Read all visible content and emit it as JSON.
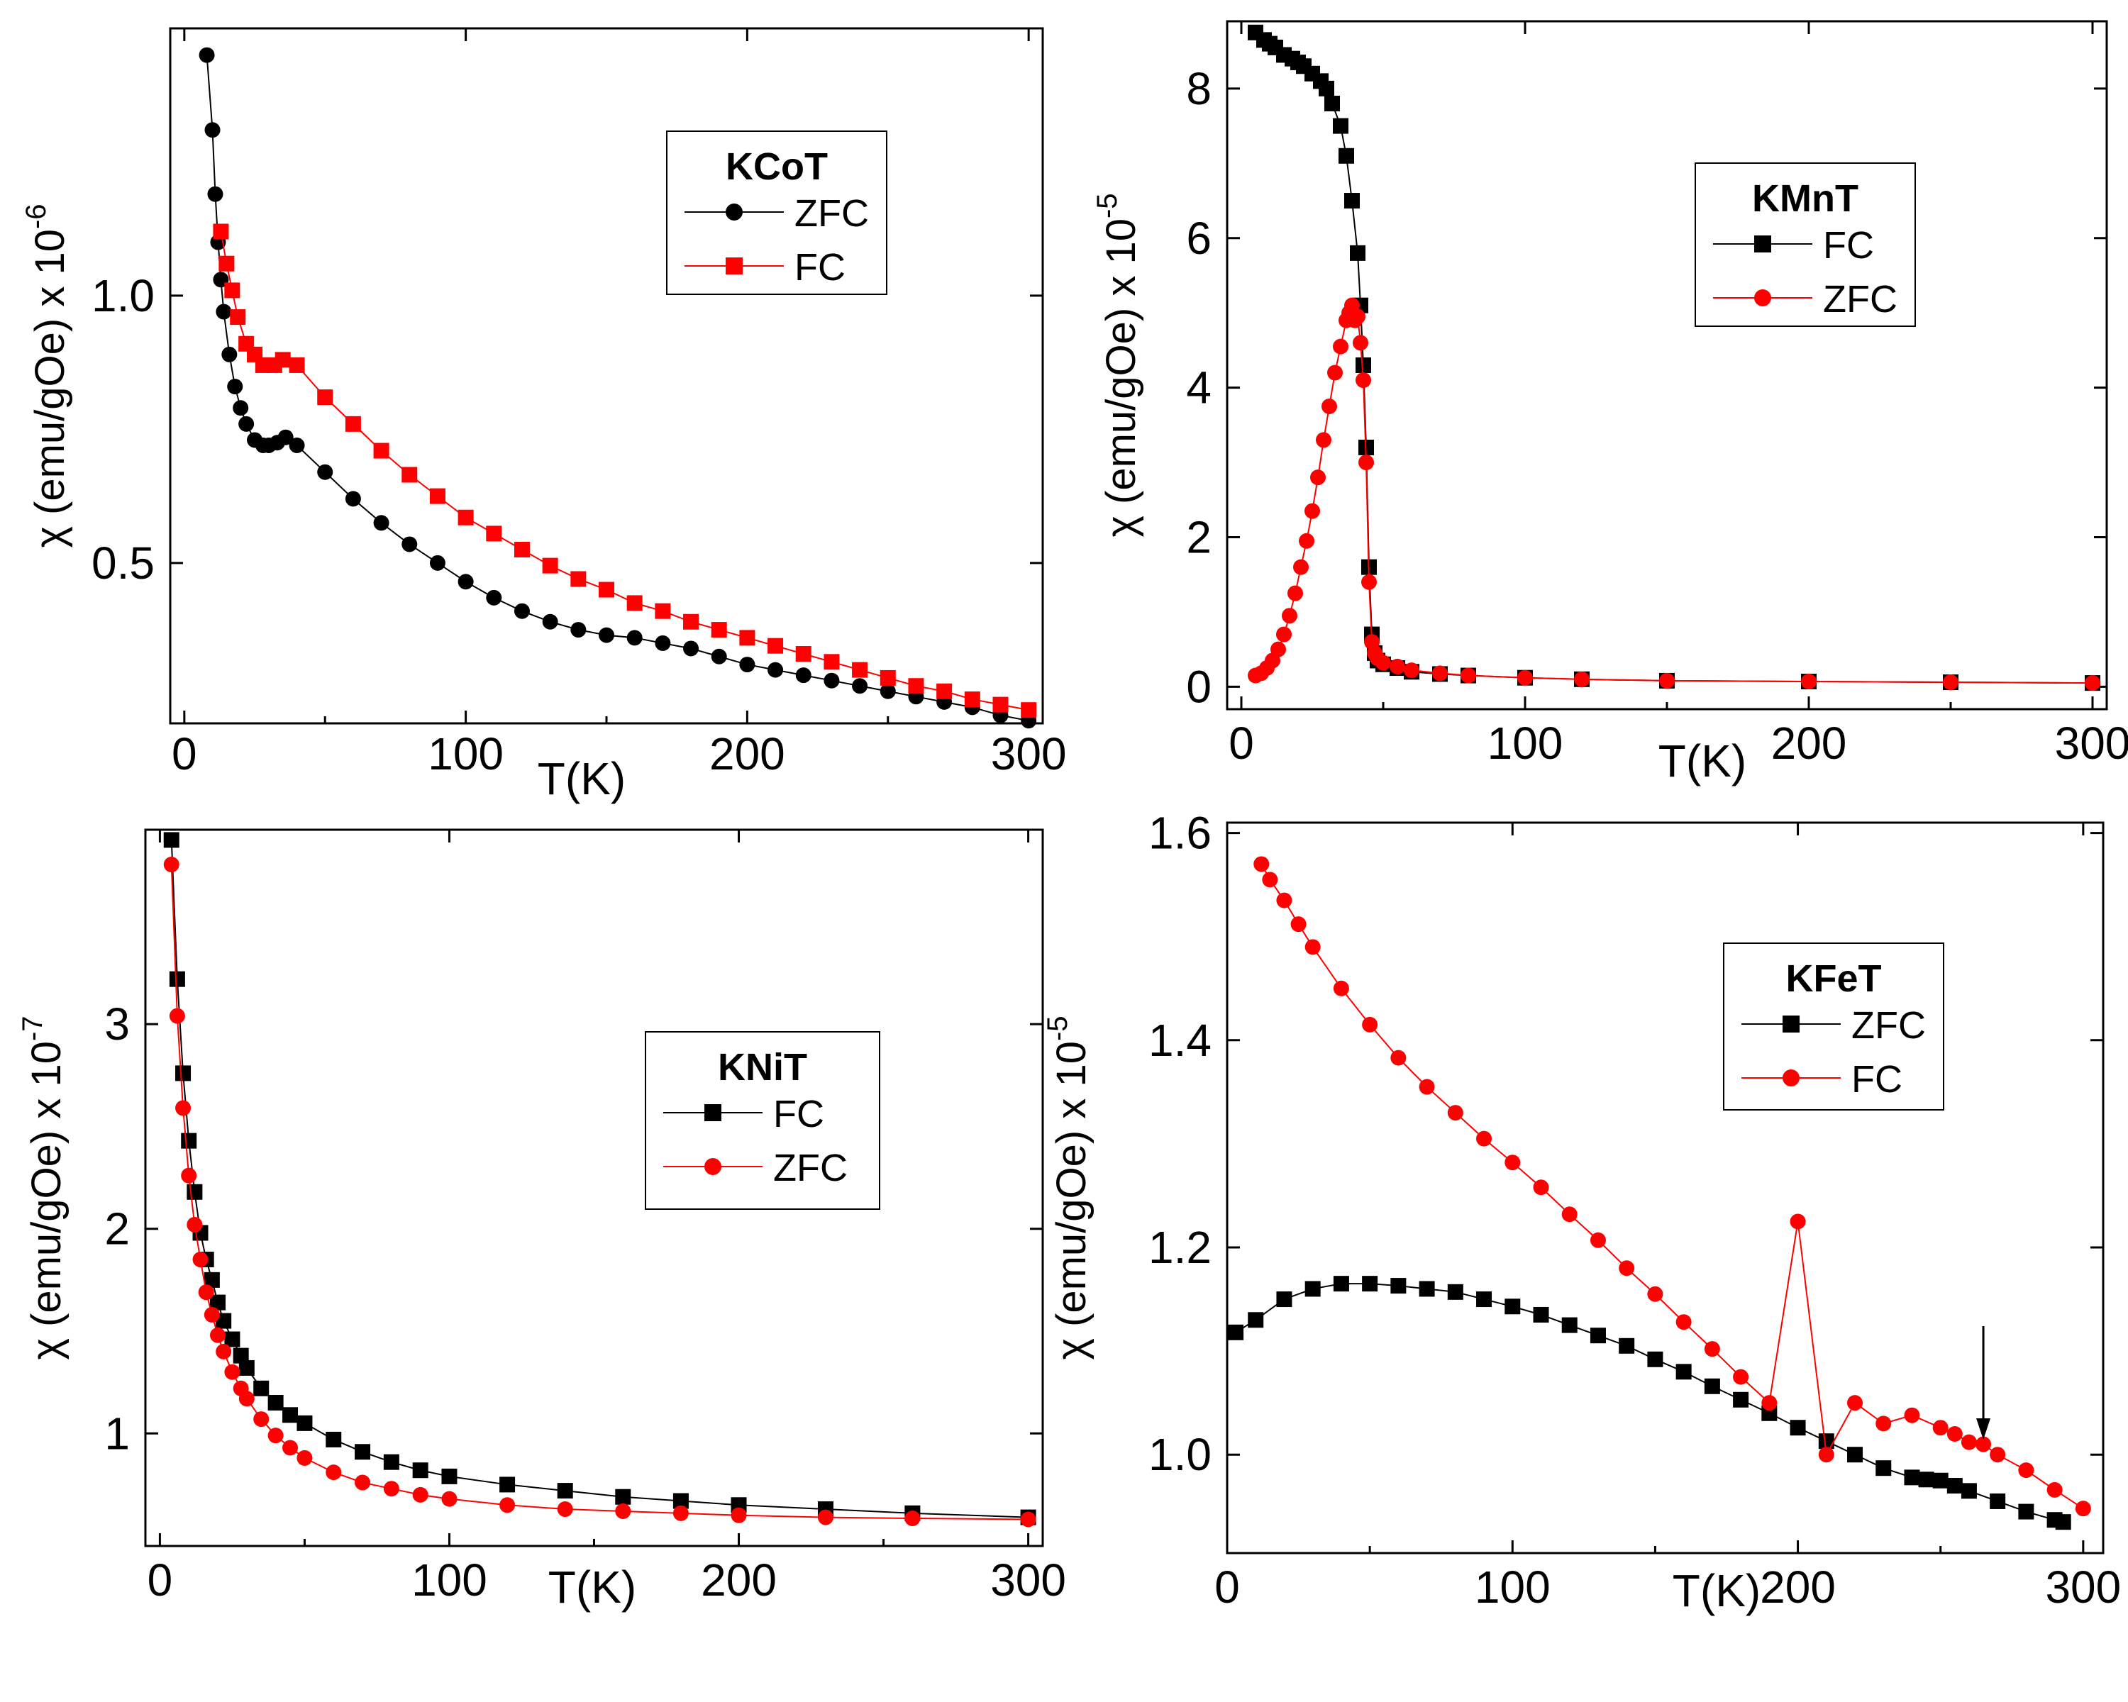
{
  "chart_data": [
    {
      "id": "kcot",
      "type": "scatter",
      "legend_title": "KCoT",
      "xlabel": "T(K)",
      "ylabel": "χ (emu/gOe) x 10",
      "ylabel_exp": "-6",
      "xlim": [
        -5,
        305
      ],
      "ylim": [
        0.2,
        1.5
      ],
      "xticks": [
        "0",
        "100",
        "200",
        "300"
      ],
      "yticks": [
        "0.5",
        "1.0"
      ],
      "xtick_values": [
        0,
        100,
        200,
        300
      ],
      "ytick_values": [
        0.5,
        1.0
      ],
      "legend_position": "top-right",
      "series": [
        {
          "name": "ZFC",
          "color": "#000000",
          "marker": "circle",
          "x": [
            8,
            10,
            11,
            12,
            13,
            14,
            16,
            18,
            20,
            22,
            25,
            28,
            30,
            33,
            36,
            40,
            50,
            60,
            70,
            80,
            90,
            100,
            110,
            120,
            130,
            140,
            150,
            160,
            170,
            180,
            190,
            200,
            210,
            220,
            230,
            240,
            250,
            260,
            270,
            280,
            290,
            300
          ],
          "y": [
            1.45,
            1.31,
            1.19,
            1.1,
            1.03,
            0.97,
            0.89,
            0.83,
            0.79,
            0.76,
            0.73,
            0.72,
            0.72,
            0.725,
            0.735,
            0.72,
            0.67,
            0.62,
            0.575,
            0.535,
            0.5,
            0.465,
            0.435,
            0.41,
            0.39,
            0.375,
            0.365,
            0.36,
            0.35,
            0.34,
            0.325,
            0.31,
            0.3,
            0.29,
            0.28,
            0.27,
            0.26,
            0.25,
            0.24,
            0.23,
            0.215,
            0.205
          ]
        },
        {
          "name": "FC",
          "color": "#ff0000",
          "marker": "square",
          "x": [
            13,
            15,
            17,
            19,
            22,
            25,
            28,
            32,
            35,
            40,
            50,
            60,
            70,
            80,
            90,
            100,
            110,
            120,
            130,
            140,
            150,
            160,
            170,
            180,
            190,
            200,
            210,
            220,
            230,
            240,
            250,
            260,
            270,
            280,
            290,
            300
          ],
          "y": [
            1.12,
            1.06,
            1.01,
            0.96,
            0.91,
            0.89,
            0.87,
            0.87,
            0.88,
            0.87,
            0.81,
            0.76,
            0.71,
            0.665,
            0.625,
            0.585,
            0.555,
            0.525,
            0.495,
            0.47,
            0.45,
            0.425,
            0.41,
            0.39,
            0.375,
            0.36,
            0.345,
            0.33,
            0.315,
            0.3,
            0.285,
            0.27,
            0.26,
            0.245,
            0.235,
            0.225
          ]
        }
      ]
    },
    {
      "id": "kmnt",
      "type": "scatter",
      "legend_title": "KMnT",
      "xlabel": "T(K)",
      "ylabel": "χ (emu/gOe) x 10",
      "ylabel_exp": "-5",
      "xlim": [
        -5,
        305
      ],
      "ylim": [
        -0.3,
        8.9
      ],
      "xticks": [
        "0",
        "100",
        "200",
        "300"
      ],
      "yticks": [
        "0",
        "2",
        "4",
        "6",
        "8"
      ],
      "xtick_values": [
        0,
        100,
        200,
        300
      ],
      "ytick_values": [
        0,
        2,
        4,
        6,
        8
      ],
      "legend_position": "top-right",
      "series": [
        {
          "name": "FC",
          "color": "#000000",
          "marker": "square",
          "x": [
            5,
            8,
            10,
            12,
            15,
            18,
            20,
            22,
            25,
            28,
            30,
            32,
            35,
            37,
            39,
            41,
            42,
            43,
            44,
            45,
            46,
            47,
            48,
            50,
            55,
            60,
            70,
            80,
            100,
            120,
            150,
            200,
            250,
            300
          ],
          "y": [
            8.75,
            8.65,
            8.6,
            8.55,
            8.45,
            8.4,
            8.35,
            8.3,
            8.2,
            8.1,
            8.0,
            7.8,
            7.5,
            7.1,
            6.5,
            5.8,
            5.1,
            4.3,
            3.2,
            1.6,
            0.7,
            0.45,
            0.35,
            0.3,
            0.25,
            0.2,
            0.17,
            0.15,
            0.12,
            0.1,
            0.08,
            0.07,
            0.06,
            0.05
          ]
        },
        {
          "name": "ZFC",
          "color": "#ff0000",
          "marker": "circle",
          "x": [
            5,
            7,
            9,
            11,
            13,
            15,
            17,
            19,
            21,
            23,
            25,
            27,
            29,
            31,
            33,
            35,
            37,
            38,
            39,
            40,
            41,
            42,
            43,
            44,
            45,
            46,
            47,
            48,
            50,
            55,
            60,
            70,
            80,
            100,
            120,
            150,
            200,
            250,
            300
          ],
          "y": [
            0.15,
            0.18,
            0.25,
            0.35,
            0.5,
            0.7,
            0.95,
            1.25,
            1.6,
            1.95,
            2.35,
            2.8,
            3.3,
            3.75,
            4.2,
            4.55,
            4.9,
            5.0,
            5.1,
            4.9,
            4.95,
            4.6,
            4.1,
            3.0,
            1.4,
            0.6,
            0.45,
            0.38,
            0.32,
            0.27,
            0.22,
            0.18,
            0.15,
            0.12,
            0.1,
            0.08,
            0.07,
            0.06,
            0.05
          ]
        }
      ]
    },
    {
      "id": "knit",
      "type": "scatter",
      "legend_title": "KNiT",
      "xlabel": "T(K)",
      "ylabel": "χ (emu/gOe) x 10",
      "ylabel_exp": "-7",
      "xlim": [
        -5,
        305
      ],
      "ylim": [
        0.45,
        3.95
      ],
      "xticks": [
        "0",
        "100",
        "200",
        "300"
      ],
      "yticks": [
        "1",
        "2",
        "3"
      ],
      "xtick_values": [
        0,
        100,
        200,
        300
      ],
      "ytick_values": [
        1,
        2,
        3
      ],
      "legend_position": "right",
      "series": [
        {
          "name": "FC",
          "color": "#000000",
          "marker": "square",
          "x": [
            4,
            6,
            8,
            10,
            12,
            14,
            16,
            18,
            20,
            22,
            25,
            28,
            30,
            35,
            40,
            45,
            50,
            60,
            70,
            80,
            90,
            100,
            120,
            140,
            160,
            180,
            200,
            230,
            260,
            300
          ],
          "y": [
            3.9,
            3.22,
            2.76,
            2.43,
            2.18,
            1.98,
            1.85,
            1.75,
            1.64,
            1.55,
            1.46,
            1.38,
            1.32,
            1.22,
            1.15,
            1.09,
            1.05,
            0.97,
            0.91,
            0.86,
            0.82,
            0.79,
            0.75,
            0.72,
            0.69,
            0.67,
            0.65,
            0.63,
            0.61,
            0.59
          ]
        },
        {
          "name": "ZFC",
          "color": "#ff0000",
          "marker": "circle",
          "x": [
            4,
            6,
            8,
            10,
            12,
            14,
            16,
            18,
            20,
            22,
            25,
            28,
            30,
            35,
            40,
            45,
            50,
            60,
            70,
            80,
            90,
            100,
            120,
            140,
            160,
            180,
            200,
            230,
            260,
            300
          ],
          "y": [
            3.78,
            3.04,
            2.59,
            2.26,
            2.02,
            1.85,
            1.69,
            1.58,
            1.48,
            1.4,
            1.3,
            1.22,
            1.17,
            1.07,
            0.99,
            0.93,
            0.88,
            0.81,
            0.76,
            0.73,
            0.7,
            0.68,
            0.65,
            0.63,
            0.62,
            0.61,
            0.6,
            0.59,
            0.585,
            0.58
          ]
        }
      ]
    },
    {
      "id": "kfet",
      "type": "scatter",
      "legend_title": "KFeT",
      "xlabel": "T(K)",
      "ylabel": "χ (emu/gOe) x 10",
      "ylabel_exp": "-5",
      "xlim": [
        0,
        307
      ],
      "ylim": [
        0.905,
        1.61
      ],
      "xticks": [
        "0",
        "100",
        "200",
        "300"
      ],
      "yticks": [
        "1.0",
        "1.2",
        "1.4",
        "1.6"
      ],
      "xtick_values": [
        0,
        100,
        200,
        300
      ],
      "ytick_values": [
        1.0,
        1.2,
        1.4,
        1.6
      ],
      "legend_position": "top-right",
      "arrow_at_x": 265,
      "series": [
        {
          "name": "ZFC",
          "color": "#000000",
          "marker": "square",
          "x": [
            3,
            10,
            20,
            30,
            40,
            50,
            60,
            70,
            80,
            90,
            100,
            110,
            120,
            130,
            140,
            150,
            160,
            170,
            180,
            190,
            200,
            210,
            220,
            230,
            240,
            245,
            250,
            255,
            260,
            270,
            280,
            290,
            293
          ],
          "y": [
            1.118,
            1.13,
            1.15,
            1.16,
            1.165,
            1.165,
            1.163,
            1.16,
            1.157,
            1.15,
            1.143,
            1.135,
            1.125,
            1.115,
            1.105,
            1.092,
            1.08,
            1.066,
            1.053,
            1.04,
            1.026,
            1.013,
            1.0,
            0.987,
            0.978,
            0.976,
            0.975,
            0.97,
            0.965,
            0.955,
            0.945,
            0.937,
            0.935
          ]
        },
        {
          "name": "FC",
          "color": "#ff0000",
          "marker": "circle",
          "x": [
            12,
            15,
            20,
            25,
            30,
            40,
            50,
            60,
            70,
            80,
            90,
            100,
            110,
            120,
            130,
            140,
            150,
            160,
            170,
            180,
            190,
            200,
            210,
            220,
            230,
            240,
            250,
            255,
            260,
            265,
            270,
            280,
            290,
            300
          ],
          "y": [
            1.57,
            1.555,
            1.535,
            1.512,
            1.49,
            1.45,
            1.415,
            1.383,
            1.355,
            1.33,
            1.305,
            1.282,
            1.258,
            1.232,
            1.207,
            1.18,
            1.155,
            1.128,
            1.102,
            1.075,
            1.05,
            1.225,
            1.0,
            1.05,
            1.03,
            1.038,
            1.026,
            1.02,
            1.012,
            1.01,
            1.0,
            0.985,
            0.966,
            0.948
          ]
        }
      ]
    }
  ]
}
